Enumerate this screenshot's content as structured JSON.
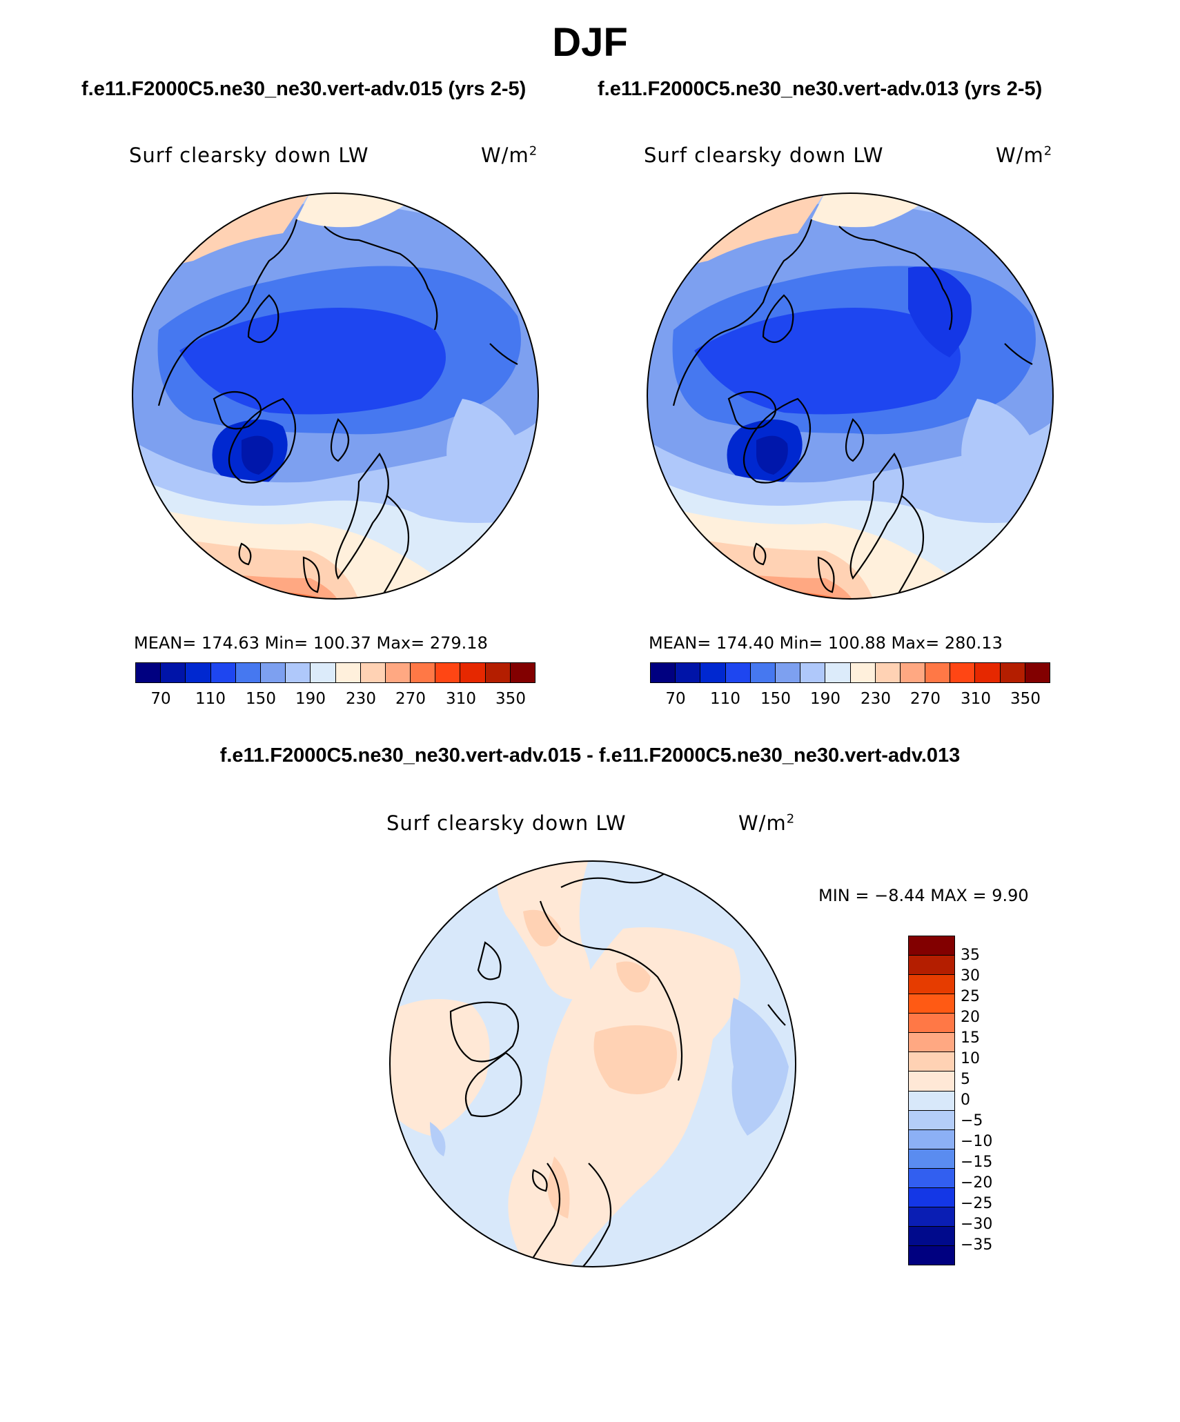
{
  "figure": {
    "title": "DJF",
    "case1_header": "f.e11.F2000C5.ne30_ne30.vert-adv.015 (yrs 2-5)",
    "case2_header": "f.e11.F2000C5.ne30_ne30.vert-adv.013 (yrs 2-5)",
    "diff_header": "f.e11.F2000C5.ne30_ne30.vert-adv.015 - f.e11.F2000C5.ne30_ne30.vert-adv.013"
  },
  "panels": {
    "case1": {
      "variable": "Surf clearsky down LW",
      "units": "W/m",
      "units_exp": "2",
      "stats": "MEAN= 174.63   Min= 100.37   Max= 279.18"
    },
    "case2": {
      "variable": "Surf clearsky down LW",
      "units": "W/m",
      "units_exp": "2",
      "stats": "MEAN= 174.40   Min= 100.88   Max= 280.13"
    },
    "diff": {
      "variable": "Surf clearsky down LW",
      "units": "W/m",
      "units_exp": "2",
      "stats": "MIN =   −8.44 MAX =     9.90"
    }
  },
  "colorbars": {
    "main": {
      "colors": [
        "#000080",
        "#0014a8",
        "#0028d0",
        "#1e46f0",
        "#4678f0",
        "#7da0f0",
        "#afc8fa",
        "#dcebfa",
        "#fff0dc",
        "#ffd2b4",
        "#ffa882",
        "#ff7846",
        "#ff4614",
        "#e62800",
        "#b41e00",
        "#820000"
      ],
      "tick_labels": [
        "70",
        "110",
        "150",
        "190",
        "230",
        "270",
        "310",
        "350"
      ]
    },
    "diff": {
      "colors": [
        "#820000",
        "#b41e00",
        "#e63c00",
        "#ff5a14",
        "#ff7846",
        "#ffa882",
        "#ffd2b4",
        "#ffe8d6",
        "#d8e8fa",
        "#b4cdf8",
        "#8cb0f5",
        "#5a8cf0",
        "#325ff0",
        "#1437e6",
        "#0a1eb4",
        "#000a8c",
        "#000080"
      ],
      "tick_labels": [
        "35",
        "30",
        "25",
        "20",
        "15",
        "10",
        "5",
        "0",
        "−5",
        "−10",
        "−15",
        "−20",
        "−25",
        "−30",
        "−35"
      ]
    }
  },
  "map": {
    "projection": "North polar stereographic",
    "case_field_levels": [
      "#7da0f0",
      "#4678f0",
      "#1e46f0",
      "#0028d0",
      "#afc8fa",
      "#dcebfa",
      "#fff0dc",
      "#ffd2b4",
      "#ffa882",
      "#ff7846"
    ],
    "diff_field_levels": [
      "#d8e8fa",
      "#ffe8d6",
      "#ffd2b4",
      "#b4cdf8"
    ]
  }
}
